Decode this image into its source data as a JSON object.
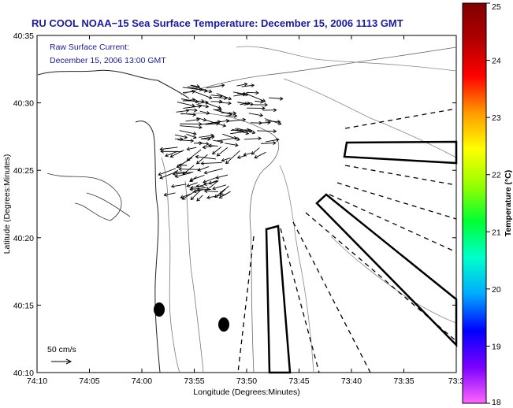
{
  "title": "RU COOL  NOAA−15  Sea Surface Temperature:  December 15, 2006 1113 GMT",
  "inset": {
    "line1": "Raw Surface Current:",
    "line2": "December 15, 2006 13:00 GMT",
    "scale_label": "50 cm/s"
  },
  "axes": {
    "xlabel": "Longitude (Degrees:Minutes)",
    "ylabel": "Latitude (Degrees:Minutes)",
    "x_ticks": [
      "74:10",
      "74:05",
      "74:00",
      "73:55",
      "73:50",
      "73:45",
      "73:40",
      "73:35",
      "73:3"
    ],
    "y_ticks": [
      "40:35",
      "40:30",
      "40:25",
      "40:20",
      "40:15",
      "40:10"
    ],
    "x_range_min": [
      -610,
      -573
    ],
    "y_range_min": [
      2410,
      2435
    ]
  },
  "colorbar": {
    "label": "Temperature (°C)",
    "ticks": [
      "25",
      "24",
      "23",
      "22",
      "21",
      "20",
      "19",
      "18"
    ],
    "range": [
      18,
      25
    ],
    "colors": [
      "#ff66ff",
      "#7a00ff",
      "#0000ff",
      "#00aaff",
      "#00ffcc",
      "#00ff33",
      "#99ff00",
      "#ffff00",
      "#ff9900",
      "#ff0000",
      "#b00000",
      "#800000"
    ]
  },
  "map_features": {
    "buoys": [
      {
        "name": "west-buoy",
        "lon_min": -601.2,
        "lat_min": 2414.7
      },
      {
        "name": "east-buoy",
        "lon_min": -597.7,
        "lat_min": 2413.5
      }
    ]
  }
}
